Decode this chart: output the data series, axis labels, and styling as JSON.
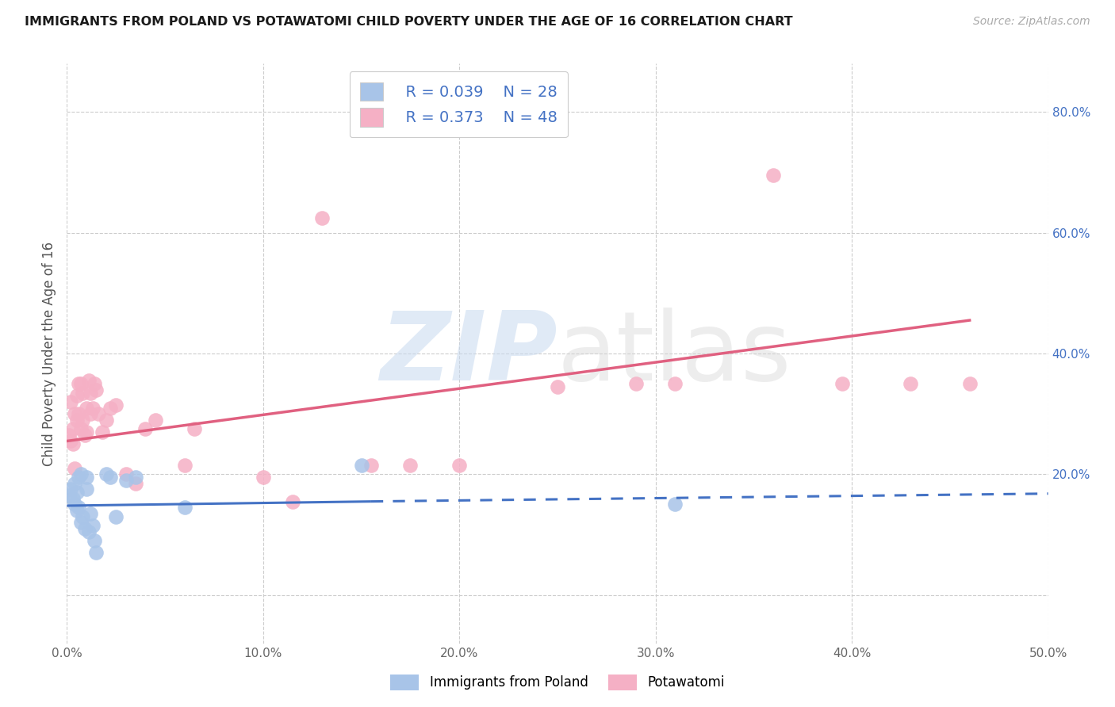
{
  "title": "IMMIGRANTS FROM POLAND VS POTAWATOMI CHILD POVERTY UNDER THE AGE OF 16 CORRELATION CHART",
  "source": "Source: ZipAtlas.com",
  "ylabel": "Child Poverty Under the Age of 16",
  "xlim": [
    0.0,
    0.5
  ],
  "ylim": [
    -0.08,
    0.88
  ],
  "yticks": [
    0.0,
    0.2,
    0.4,
    0.6,
    0.8
  ],
  "xticks": [
    0.0,
    0.1,
    0.2,
    0.3,
    0.4,
    0.5
  ],
  "xtick_labels": [
    "0.0%",
    "10.0%",
    "20.0%",
    "30.0%",
    "40.0%",
    "50.0%"
  ],
  "ytick_labels_right": [
    "",
    "20.0%",
    "40.0%",
    "60.0%",
    "80.0%"
  ],
  "blue_color": "#a8c4e8",
  "pink_color": "#f5b0c5",
  "blue_line_color": "#4472c4",
  "pink_line_color": "#e06080",
  "blue_scatter_x": [
    0.001,
    0.002,
    0.003,
    0.004,
    0.004,
    0.005,
    0.005,
    0.006,
    0.006,
    0.007,
    0.007,
    0.008,
    0.009,
    0.01,
    0.01,
    0.011,
    0.012,
    0.013,
    0.014,
    0.015,
    0.02,
    0.022,
    0.025,
    0.03,
    0.035,
    0.06,
    0.15,
    0.31
  ],
  "blue_scatter_y": [
    0.165,
    0.175,
    0.16,
    0.185,
    0.15,
    0.17,
    0.14,
    0.145,
    0.195,
    0.12,
    0.2,
    0.13,
    0.11,
    0.195,
    0.175,
    0.105,
    0.135,
    0.115,
    0.09,
    0.07,
    0.2,
    0.195,
    0.13,
    0.19,
    0.195,
    0.145,
    0.215,
    0.15
  ],
  "pink_scatter_x": [
    0.001,
    0.002,
    0.002,
    0.003,
    0.003,
    0.004,
    0.004,
    0.005,
    0.005,
    0.006,
    0.006,
    0.007,
    0.007,
    0.008,
    0.008,
    0.009,
    0.01,
    0.01,
    0.011,
    0.012,
    0.012,
    0.013,
    0.014,
    0.015,
    0.016,
    0.018,
    0.02,
    0.022,
    0.025,
    0.03,
    0.035,
    0.04,
    0.045,
    0.06,
    0.065,
    0.1,
    0.115,
    0.13,
    0.155,
    0.175,
    0.2,
    0.25,
    0.29,
    0.31,
    0.36,
    0.395,
    0.43,
    0.46
  ],
  "pink_scatter_y": [
    0.265,
    0.255,
    0.32,
    0.275,
    0.25,
    0.21,
    0.3,
    0.33,
    0.29,
    0.35,
    0.3,
    0.35,
    0.275,
    0.335,
    0.29,
    0.265,
    0.27,
    0.31,
    0.355,
    0.335,
    0.3,
    0.31,
    0.35,
    0.34,
    0.3,
    0.27,
    0.29,
    0.31,
    0.315,
    0.2,
    0.185,
    0.275,
    0.29,
    0.215,
    0.275,
    0.195,
    0.155,
    0.625,
    0.215,
    0.215,
    0.215,
    0.345,
    0.35,
    0.35,
    0.695,
    0.35,
    0.35,
    0.35
  ],
  "blue_line_x0": 0.0,
  "blue_line_x_solid_end": 0.155,
  "blue_line_x1": 0.5,
  "blue_line_y_at_0": 0.148,
  "blue_line_y_at_end": 0.155,
  "blue_line_y_at_50": 0.168,
  "pink_line_x0": 0.0,
  "pink_line_x1": 0.46,
  "pink_line_y_at_0": 0.255,
  "pink_line_y_at_1": 0.455
}
